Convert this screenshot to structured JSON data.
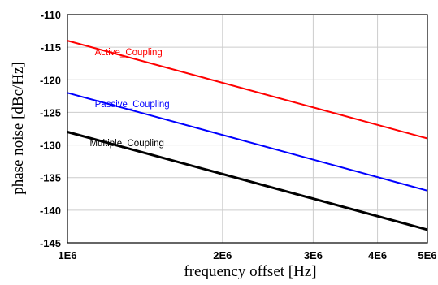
{
  "chart_data": {
    "type": "line",
    "xscale": "log",
    "xlabel": "frequency offset [Hz]",
    "ylabel": "phase noise [dBc/Hz]",
    "xlim": [
      1000000,
      5000000
    ],
    "ylim": [
      -145,
      -110
    ],
    "grid": true,
    "x_ticks": [
      {
        "value": 1000000,
        "label": "1E6"
      },
      {
        "value": 2000000,
        "label": "2E6"
      },
      {
        "value": 3000000,
        "label": "3E6"
      },
      {
        "value": 4000000,
        "label": "4E6"
      },
      {
        "value": 5000000,
        "label": "5E6"
      }
    ],
    "y_ticks": [
      {
        "value": -110,
        "label": "-110"
      },
      {
        "value": -115,
        "label": "-115"
      },
      {
        "value": -120,
        "label": "-120"
      },
      {
        "value": -125,
        "label": "-125"
      },
      {
        "value": -130,
        "label": "-130"
      },
      {
        "value": -135,
        "label": "-135"
      },
      {
        "value": -140,
        "label": "-140"
      },
      {
        "value": -145,
        "label": "-145"
      }
    ],
    "series": [
      {
        "name": "Active_Coupling",
        "color": "#ff0000",
        "x": [
          1000000,
          5000000
        ],
        "y": [
          -114,
          -129
        ],
        "label_at": [
          1130000,
          -116.2
        ]
      },
      {
        "name": "Passive_Coupling",
        "color": "#0000ff",
        "x": [
          1000000,
          5000000
        ],
        "y": [
          -122,
          -137
        ],
        "label_at": [
          1130000,
          -124.2
        ]
      },
      {
        "name": "Multiple_Coupling",
        "color": "#000000",
        "x": [
          1000000,
          5000000
        ],
        "y": [
          -128,
          -143
        ],
        "label_at": [
          1105000,
          -130.2
        ]
      }
    ]
  }
}
